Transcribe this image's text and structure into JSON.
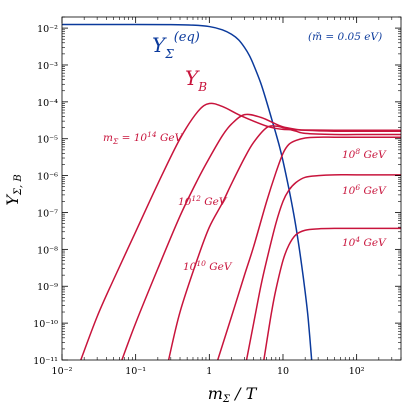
{
  "chart_data": {
    "type": "line",
    "xlabel": "m_Σ / T",
    "ylabel": "Y_Σ,B",
    "x_scale": "log",
    "y_scale": "log",
    "xlim": [
      0.01,
      400
    ],
    "ylim": [
      1e-11,
      0.02
    ],
    "grid": false,
    "x_ticks": [
      {
        "value": 0.01,
        "label": "10⁻²"
      },
      {
        "value": 0.1,
        "label": "10⁻¹"
      },
      {
        "value": 1,
        "label": "1"
      },
      {
        "value": 10,
        "label": "10"
      },
      {
        "value": 100,
        "label": "10²"
      }
    ],
    "y_ticks": [
      {
        "value": 0.01,
        "label": "10⁻²"
      },
      {
        "value": 0.001,
        "label": "10⁻³"
      },
      {
        "value": 0.0001,
        "label": "10⁻⁴"
      },
      {
        "value": 1e-05,
        "label": "10⁻⁵"
      },
      {
        "value": 1e-06,
        "label": "10⁻⁶"
      },
      {
        "value": 1e-07,
        "label": "10⁻⁷"
      },
      {
        "value": 1e-08,
        "label": "10⁻⁸"
      },
      {
        "value": 1e-09,
        "label": "10⁻⁹"
      },
      {
        "value": 1e-10,
        "label": "10⁻¹⁰"
      },
      {
        "value": 1e-11,
        "label": "10⁻¹¹"
      }
    ],
    "annotations": [
      {
        "id": "param",
        "text": "(m̃ = 0.05 eV)",
        "color": "#0b3a9c"
      },
      {
        "id": "yeq",
        "text": "Y_Σ^(eq)",
        "color": "#0b3a9c"
      },
      {
        "id": "yb",
        "text": "Y_B",
        "color": "#c8143c"
      },
      {
        "id": "m14",
        "text": "m_Σ = 10¹⁴ GeV",
        "color": "#c8143c"
      },
      {
        "id": "m12",
        "text": "10¹² GeV",
        "color": "#c8143c"
      },
      {
        "id": "m10",
        "text": "10¹⁰ GeV",
        "color": "#c8143c"
      },
      {
        "id": "m8",
        "text": "10⁸ GeV",
        "color": "#c8143c"
      },
      {
        "id": "m6",
        "text": "10⁶ GeV",
        "color": "#c8143c"
      },
      {
        "id": "m4",
        "text": "10⁴ GeV",
        "color": "#c8143c"
      }
    ],
    "series": [
      {
        "name": "Y_Σ^(eq)",
        "color": "#0b3a9c",
        "x": [
          0.01,
          0.1,
          0.3,
          0.6,
          1,
          1.5,
          2,
          2.5,
          3,
          3.5,
          4,
          5,
          6,
          7,
          8,
          9,
          10,
          12,
          14,
          16,
          18,
          20,
          22,
          24.5
        ],
        "y": [
          0.0125,
          0.0125,
          0.0124,
          0.012,
          0.011,
          0.009,
          0.0068,
          0.0048,
          0.003,
          0.0018,
          0.001,
          0.00032,
          0.0001,
          3.5e-05,
          1.4e-05,
          6e-06,
          2.5e-06,
          4.5e-07,
          9e-08,
          1.8e-08,
          3.5e-09,
          7e-10,
          1.3e-10,
          1e-11
        ]
      },
      {
        "name": "10¹⁴ GeV",
        "color": "#c8143c",
        "x": [
          0.018,
          0.03,
          0.05,
          0.1,
          0.2,
          0.4,
          0.7,
          1,
          1.5,
          2.5,
          4,
          6,
          8,
          10,
          15,
          20,
          50,
          100,
          400
        ],
        "y": [
          1e-11,
          1.5e-10,
          1.5e-09,
          3e-08,
          6e-07,
          1e-05,
          5.5e-05,
          9e-05,
          7.5e-05,
          4.5e-05,
          3e-05,
          2.2e-05,
          1.9e-05,
          1.8e-05,
          1.75e-05,
          1.72e-05,
          1.7e-05,
          1.7e-05,
          1.7e-05
        ]
      },
      {
        "name": "10¹² GeV",
        "color": "#c8143c",
        "x": [
          0.065,
          0.1,
          0.2,
          0.4,
          0.7,
          1,
          1.5,
          2,
          3,
          5,
          8,
          10,
          15,
          20,
          50,
          100,
          400
        ],
        "y": [
          1e-11,
          1e-10,
          3e-09,
          8e-08,
          8e-07,
          3e-06,
          1.2e-05,
          2.5e-05,
          4.5e-05,
          3.8e-05,
          2.5e-05,
          2.1e-05,
          1.8e-05,
          1.7e-05,
          1.6e-05,
          1.6e-05,
          1.6e-05
        ]
      },
      {
        "name": "10¹⁰ GeV",
        "color": "#c8143c",
        "x": [
          0.28,
          0.4,
          0.7,
          1,
          1.5,
          2,
          3,
          4,
          6,
          8,
          10,
          15,
          20,
          50,
          100,
          400
        ],
        "y": [
          1e-11,
          2e-10,
          6e-09,
          4e-08,
          1.8e-07,
          6e-07,
          3e-06,
          8e-06,
          2e-05,
          2.2e-05,
          2e-05,
          1.6e-05,
          1.4e-05,
          1.3e-05,
          1.3e-05,
          1.3e-05
        ]
      },
      {
        "name": "10⁸ GeV",
        "color": "#c8143c",
        "x": [
          1.3,
          2,
          3,
          4,
          6,
          8,
          10,
          12,
          15,
          20,
          30,
          50,
          100,
          400
        ],
        "y": [
          1e-11,
          1.5e-10,
          2e-09,
          1.2e-08,
          2e-07,
          1.2e-06,
          4e-06,
          7e-06,
          9e-06,
          1.05e-05,
          1.1e-05,
          1.1e-05,
          1.1e-05,
          1.1e-05
        ]
      },
      {
        "name": "10⁶ GeV",
        "color": "#c8143c",
        "x": [
          3.2,
          4,
          5,
          6,
          8,
          10,
          12,
          15,
          20,
          30,
          50,
          100,
          400
        ],
        "y": [
          1e-11,
          1e-10,
          1e-09,
          5e-09,
          5e-08,
          2e-07,
          4e-07,
          6.5e-07,
          9e-07,
          1e-06,
          1.05e-06,
          1.05e-06,
          1.05e-06
        ]
      },
      {
        "name": "10⁴ GeV",
        "color": "#c8143c",
        "x": [
          5.5,
          6,
          7,
          8,
          10,
          12,
          15,
          20,
          30,
          50,
          100,
          400
        ],
        "y": [
          1e-11,
          3e-11,
          2e-10,
          8e-10,
          5e-09,
          1.3e-08,
          2.5e-08,
          3.3e-08,
          3.6e-08,
          3.7e-08,
          3.7e-08,
          3.7e-08
        ]
      }
    ]
  }
}
